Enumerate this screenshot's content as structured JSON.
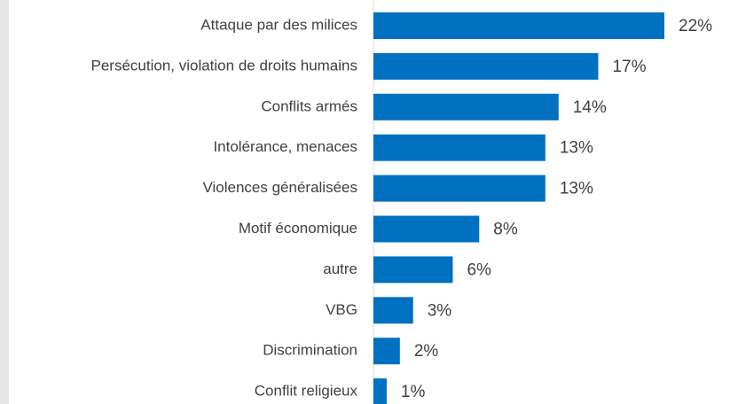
{
  "chart_data": {
    "type": "bar",
    "orientation": "horizontal",
    "categories": [
      "Attaque par des milices",
      "Persécution, violation de droits humains",
      "Conflits armés",
      "Intolérance, menaces",
      "Violences généralisées",
      "Motif économique",
      "autre",
      "VBG",
      "Discrimination",
      "Conflit religieux"
    ],
    "values": [
      22,
      17,
      14,
      13,
      13,
      8,
      6,
      3,
      2,
      1
    ],
    "value_labels": [
      "22%",
      "17%",
      "14%",
      "13%",
      "13%",
      "8%",
      "6%",
      "3%",
      "2%",
      "1%"
    ],
    "color": "#0070c0"
  }
}
